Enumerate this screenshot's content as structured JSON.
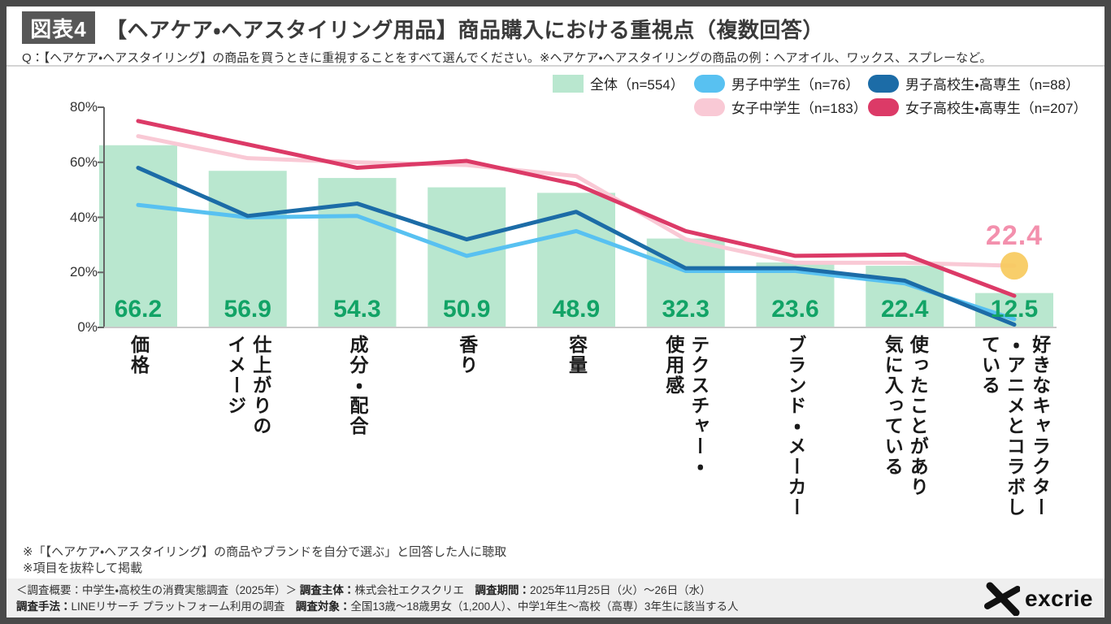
{
  "header": {
    "badge": "図表4",
    "title": "【ヘアケア・ヘアスタイリング用品】商品購入における重視点（複数回答）"
  },
  "question": "Q：【ヘアケア・ヘアスタイリング】の商品を買うときに重視することをすべて選んでください。※ヘアケア・ヘアスタイリングの商品の例：ヘアオイル、ワックス、スプレーなど。",
  "legend": {
    "items": [
      {
        "label": "全体（n=554）",
        "color": "#b9e7cf",
        "shape": "square",
        "row": 1,
        "col": 1
      },
      {
        "label": "男子中学生（n=76）",
        "color": "#58c1f1",
        "shape": "pill",
        "row": 1,
        "col": 2
      },
      {
        "label": "男子高校生・高専生（n=88）",
        "color": "#1c6ca7",
        "shape": "pill",
        "row": 1,
        "col": 3
      },
      {
        "label": "女子中学生（n=183）",
        "color": "#f9c9d5",
        "shape": "pill",
        "row": 2,
        "col": 2
      },
      {
        "label": "女子高校生・高専生（n=207）",
        "color": "#dc3a67",
        "shape": "pill",
        "row": 2,
        "col": 3
      }
    ]
  },
  "chart_data": {
    "type": "bar+line",
    "categories": [
      "価格",
      "仕上がりの\nイメージ",
      "成分・配合",
      "香り",
      "容量",
      "テクスチャー・\n使用感",
      "ブランド・メーカー",
      "使ったことがあり\n気に入っている",
      "好きなキャラクター\n・アニメとコラボし\nている"
    ],
    "bar_series": {
      "name": "全体（n=554）",
      "values": [
        66.2,
        56.9,
        54.3,
        50.9,
        48.9,
        32.3,
        23.6,
        22.4,
        12.5
      ],
      "color": "#b9e7cf",
      "label_color": "#12a366"
    },
    "line_series": [
      {
        "name": "男子中学生（n=76）",
        "color": "#58c1f1",
        "values": [
          44.5,
          40,
          40.5,
          26,
          35,
          20.5,
          20.5,
          16,
          3
        ]
      },
      {
        "name": "男子高校生・高専生（n=88）",
        "color": "#1c6ca7",
        "values": [
          58,
          40.5,
          45,
          32,
          42,
          21.5,
          21.5,
          17,
          1
        ]
      },
      {
        "name": "女子中学生（n=183）",
        "color": "#f9c9d5",
        "values": [
          69.5,
          61.5,
          60,
          59,
          55,
          32,
          23.5,
          23.5,
          22.4
        ]
      },
      {
        "name": "女子高校生・高専生（n=207）",
        "color": "#dc3a67",
        "values": [
          75,
          66.5,
          58,
          60.5,
          52,
          35,
          26,
          26.5,
          11.5
        ]
      }
    ],
    "draw_order": [
      2,
      0,
      1,
      3
    ],
    "yticks": [
      "0%",
      "20%",
      "40%",
      "60%",
      "80%"
    ],
    "ylim": [
      0,
      80
    ],
    "grid": false,
    "legend_position": "top-right",
    "highlight": {
      "series": "女子中学生（n=183）",
      "category_index": 8,
      "value": 22.4,
      "label": "22.4",
      "label_color": "#f390ad",
      "marker_color": "#f7ca5d"
    }
  },
  "footnotes": [
    "※「【ヘアケア・ヘアスタイリング】の商品やブランドを自分で選ぶ」と回答した人に聴取",
    "※項目を抜粋して掲載"
  ],
  "footer": {
    "lines": [
      [
        {
          "text": "＜調査概要：中学生・高校生の消費実態調査（2025年）＞ ",
          "bold": false
        },
        {
          "text": "調査主体：",
          "bold": true
        },
        {
          "text": "株式会社エクスクリエ",
          "bold": false
        },
        {
          "text": "　調査期間：",
          "bold": true
        },
        {
          "text": "2025年11月25日（火）～26日（水）",
          "bold": false
        }
      ],
      [
        {
          "text": "調査手法：",
          "bold": true
        },
        {
          "text": "LINEリサーチ プラットフォーム利用の調査",
          "bold": false
        },
        {
          "text": "　調査対象：",
          "bold": true
        },
        {
          "text": "全国13歳～18歳男女（1,200人）、中学1年生～高校（高専）3年生に該当する人",
          "bold": false
        }
      ]
    ],
    "logo_text": "excrie"
  }
}
